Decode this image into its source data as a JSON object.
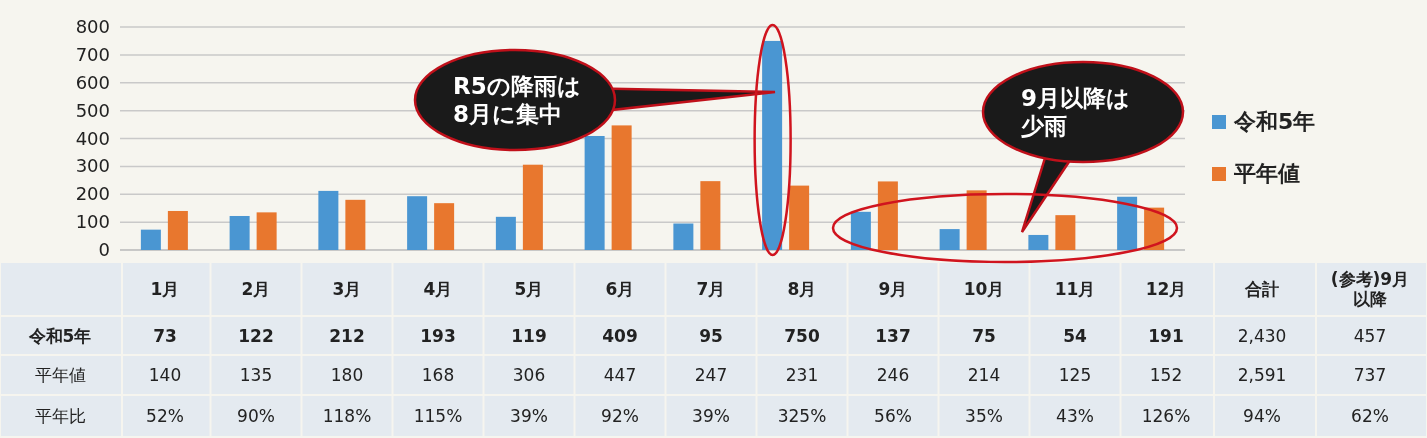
{
  "chart_data": {
    "type": "bar",
    "categories": [
      "1月",
      "2月",
      "3月",
      "4月",
      "5月",
      "6月",
      "7月",
      "8月",
      "9月",
      "10月",
      "11月",
      "12月"
    ],
    "series": [
      {
        "name": "令和5年",
        "color": "#4a96d2",
        "values": [
          73,
          122,
          212,
          193,
          119,
          409,
          95,
          750,
          137,
          75,
          54,
          191
        ]
      },
      {
        "name": "平年値",
        "color": "#e8772e",
        "values": [
          140,
          135,
          180,
          168,
          306,
          447,
          247,
          231,
          246,
          214,
          125,
          152
        ]
      }
    ],
    "ylim": [
      0,
      800
    ],
    "yticks": [
      0,
      100,
      200,
      300,
      400,
      500,
      600,
      700,
      800
    ],
    "grid": "y",
    "legend": "right",
    "data_labels": true,
    "annotations": [
      "R5の降雨は8月に集中",
      "9月以降は少雨",
      "合計",
      "(参考)9月以降",
      "2,430",
      "457",
      "2,591",
      "737",
      "平年比",
      "52%",
      "90%",
      "118%",
      "115%",
      "39%",
      "92%",
      "39%",
      "325%",
      "56%",
      "35%",
      "43%",
      "126%",
      "94%",
      "62%"
    ]
  }
}
